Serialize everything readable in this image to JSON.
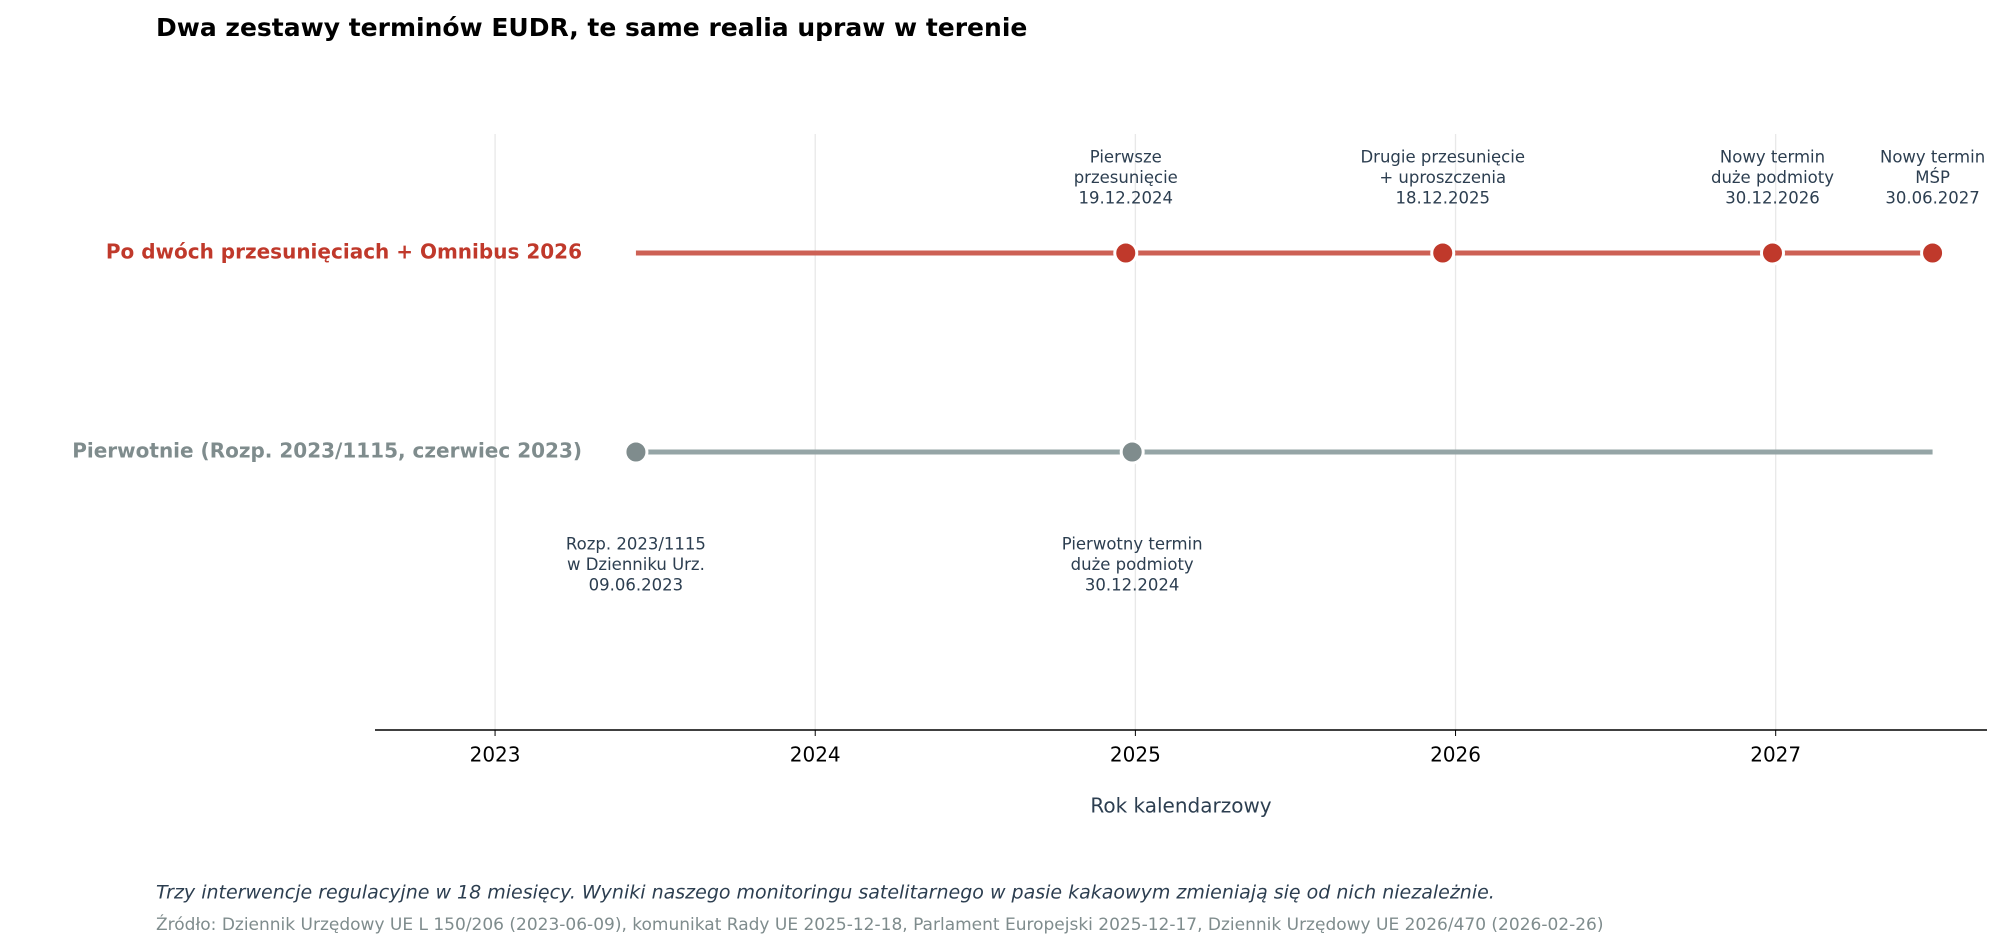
{
  "chart_data": {
    "type": "timeline",
    "title": "Dwa zestawy terminów EUDR, te same realia upraw w terenie",
    "xlabel": "Rok kalendarzowy",
    "xlim": [
      2022.625,
      2027.66
    ],
    "xticks": [
      2023,
      2024,
      2025,
      2026,
      2027
    ],
    "grid": true,
    "series": [
      {
        "name": "Po dwóch przesunięciach + Omnibus 2026",
        "color": "#c0392b",
        "line_color": "#cd6155",
        "range": [
          2023.44,
          2027.49
        ],
        "label_position": "above",
        "x": [
          2024.97,
          2025.96,
          2026.99,
          2027.49
        ],
        "labels": [
          [
            "Pierwsze",
            "przesunięcie",
            "19.12.2024"
          ],
          [
            "Drugie przesunięcie",
            "+ uproszczenia",
            "18.12.2025"
          ],
          [
            "Nowy termin",
            "duże podmioty",
            "30.12.2026"
          ],
          [
            "Nowy termin",
            "MŚP",
            "30.06.2027"
          ]
        ]
      },
      {
        "name": "Pierwotnie (Rozp. 2023/1115, czerwiec 2023)",
        "color": "#7f8c8d",
        "line_color": "#95a5a6",
        "range": [
          2023.44,
          2027.49
        ],
        "label_position": "below",
        "x": [
          2023.44,
          2024.99
        ],
        "labels": [
          [
            "Rozp. 2023/1115",
            "w Dzienniku Urz.",
            "09.06.2023"
          ],
          [
            "Pierwotny termin",
            "duże podmioty",
            "30.12.2024"
          ]
        ]
      }
    ],
    "caption": "Trzy interwencje regulacyjne w 18 miesięcy. Wyniki naszego monitoringu satelitarnego w pasie kakaowym zmieniają się od nich niezależnie.",
    "source": "Źródło: Dziennik Urzędowy UE L 150/206 (2023-06-09), komunikat Rady UE 2025-12-18, Parlament Europejski 2025-12-17, Dziennik Urzędowy UE 2026/470 (2026-02-26)"
  }
}
